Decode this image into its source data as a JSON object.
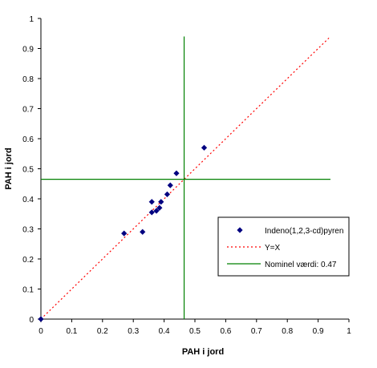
{
  "chart_data": {
    "type": "scatter",
    "title": "",
    "xlabel": "PAH i jord",
    "ylabel": "PAH i jord",
    "xlim": [
      0,
      1
    ],
    "ylim": [
      0,
      1
    ],
    "x_ticks": [
      "0",
      "0.1",
      "0.2",
      "0.3",
      "0.4",
      "0.5",
      "0.6",
      "0.7",
      "0.8",
      "0.9",
      "1"
    ],
    "y_ticks": [
      "0",
      "0.1",
      "0.2",
      "0.3",
      "0.4",
      "0.5",
      "0.6",
      "0.7",
      "0.8",
      "0.9",
      "1"
    ],
    "grid": false,
    "legend_position": "right",
    "series": [
      {
        "name": "Indeno(1,2,3-cd)pyren",
        "kind": "scatter",
        "marker": "diamond",
        "color": "#000080",
        "points": [
          [
            0.0,
            0.0
          ],
          [
            0.27,
            0.285
          ],
          [
            0.33,
            0.29
          ],
          [
            0.36,
            0.355
          ],
          [
            0.36,
            0.39
          ],
          [
            0.375,
            0.36
          ],
          [
            0.385,
            0.37
          ],
          [
            0.39,
            0.39
          ],
          [
            0.41,
            0.415
          ],
          [
            0.42,
            0.445
          ],
          [
            0.44,
            0.485
          ],
          [
            0.53,
            0.57
          ]
        ]
      },
      {
        "name": "Y=X",
        "kind": "line",
        "style": "dotted",
        "color": "#ff0000",
        "points": [
          [
            0,
            0
          ],
          [
            0.935,
            0.935
          ]
        ]
      },
      {
        "name": "Nominel værdi: 0.47",
        "kind": "crosshair",
        "color": "#008000",
        "value": 0.465,
        "x_extent": [
          0,
          0.94
        ],
        "y_extent": [
          0,
          0.94
        ]
      }
    ]
  }
}
